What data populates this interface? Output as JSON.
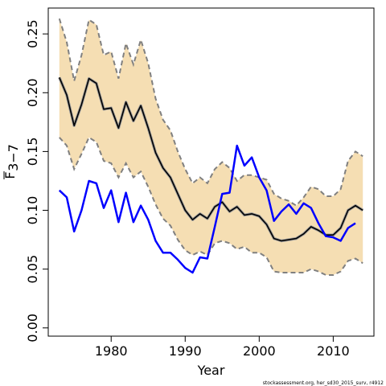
{
  "chart_data": {
    "type": "line",
    "xlabel": "Year",
    "ylabel_main": "F",
    "ylabel_sub": "3−7",
    "credit": "stockassessment.org, her_sd30_2015_surv, r4912",
    "xlim": [
      1971.5,
      2015.5
    ],
    "ylim": [
      -0.007,
      0.272
    ],
    "xticks": [
      1980,
      1990,
      2000,
      2010
    ],
    "yticks": [
      0.0,
      0.05,
      0.1,
      0.15,
      0.2,
      0.25
    ],
    "ytick_labels": [
      "0.00",
      "0.05",
      "0.10",
      "0.15",
      "0.20",
      "0.25"
    ],
    "colors": {
      "band_fill": "#f5deb3",
      "band_edge": "#808080",
      "estimate": "#000000",
      "observed": "#0000ff"
    },
    "band": {
      "x": [
        1973,
        1974,
        1975,
        1976,
        1977,
        1978,
        1979,
        1980,
        1981,
        1982,
        1983,
        1984,
        1985,
        1986,
        1987,
        1988,
        1989,
        1990,
        1991,
        1992,
        1993,
        1994,
        1995,
        1996,
        1997,
        1998,
        1999,
        2000,
        2001,
        2002,
        2003,
        2004,
        2005,
        2006,
        2007,
        2008,
        2009,
        2010,
        2011,
        2012,
        2013,
        2014
      ],
      "upper": [
        0.263,
        0.243,
        0.21,
        0.232,
        0.262,
        0.258,
        0.232,
        0.235,
        0.212,
        0.242,
        0.224,
        0.245,
        0.225,
        0.195,
        0.177,
        0.168,
        0.15,
        0.135,
        0.123,
        0.128,
        0.123,
        0.135,
        0.141,
        0.136,
        0.125,
        0.13,
        0.13,
        0.128,
        0.126,
        0.114,
        0.11,
        0.108,
        0.104,
        0.111,
        0.12,
        0.118,
        0.112,
        0.112,
        0.118,
        0.142,
        0.15,
        0.146
      ],
      "lower": [
        0.162,
        0.155,
        0.135,
        0.148,
        0.162,
        0.158,
        0.142,
        0.14,
        0.128,
        0.14,
        0.128,
        0.133,
        0.12,
        0.105,
        0.093,
        0.087,
        0.075,
        0.066,
        0.062,
        0.065,
        0.062,
        0.072,
        0.074,
        0.072,
        0.067,
        0.069,
        0.064,
        0.064,
        0.06,
        0.048,
        0.047,
        0.047,
        0.047,
        0.047,
        0.05,
        0.048,
        0.045,
        0.045,
        0.048,
        0.057,
        0.059,
        0.055
      ]
    },
    "series": [
      {
        "x": [
          1973,
          1974,
          1975,
          1976,
          1977,
          1978,
          1979,
          1980,
          1981,
          1982,
          1983,
          1984,
          1985,
          1986,
          1987,
          1988,
          1989,
          1990,
          1991,
          1992,
          1993,
          1994,
          1995,
          1996,
          1997,
          1998,
          1999,
          2000,
          2001,
          2002,
          2003,
          2004,
          2005,
          2006,
          2007,
          2008,
          2009,
          2010,
          2011,
          2012,
          2013,
          2014
        ],
        "values": [
          0.213,
          0.198,
          0.172,
          0.19,
          0.212,
          0.208,
          0.186,
          0.187,
          0.17,
          0.192,
          0.176,
          0.189,
          0.17,
          0.149,
          0.136,
          0.128,
          0.114,
          0.1,
          0.092,
          0.097,
          0.093,
          0.103,
          0.107,
          0.099,
          0.103,
          0.096,
          0.097,
          0.095,
          0.088,
          0.076,
          0.074,
          0.075,
          0.076,
          0.08,
          0.086,
          0.083,
          0.079,
          0.079,
          0.085,
          0.1,
          0.104,
          0.1
        ]
      },
      {
        "x": [
          1973,
          1974,
          1975,
          1976,
          1977,
          1978,
          1979,
          1980,
          1981,
          1982,
          1983,
          1984,
          1985,
          1986,
          1987,
          1988,
          1989,
          1990,
          1991,
          1992,
          1993,
          1994,
          1995,
          1996,
          1997,
          1998,
          1999,
          2000,
          2001,
          2002,
          2003,
          2004,
          2005,
          2006,
          2007,
          2008,
          2009,
          2010,
          2011,
          2012,
          2013
        ],
        "values": [
          0.117,
          0.111,
          0.082,
          0.1,
          0.125,
          0.123,
          0.102,
          0.117,
          0.09,
          0.115,
          0.09,
          0.104,
          0.092,
          0.074,
          0.064,
          0.064,
          0.058,
          0.051,
          0.047,
          0.06,
          0.059,
          0.086,
          0.114,
          0.115,
          0.155,
          0.138,
          0.145,
          0.128,
          0.117,
          0.091,
          0.099,
          0.105,
          0.097,
          0.106,
          0.102,
          0.089,
          0.078,
          0.077,
          0.074,
          0.085,
          0.089
        ]
      }
    ]
  }
}
